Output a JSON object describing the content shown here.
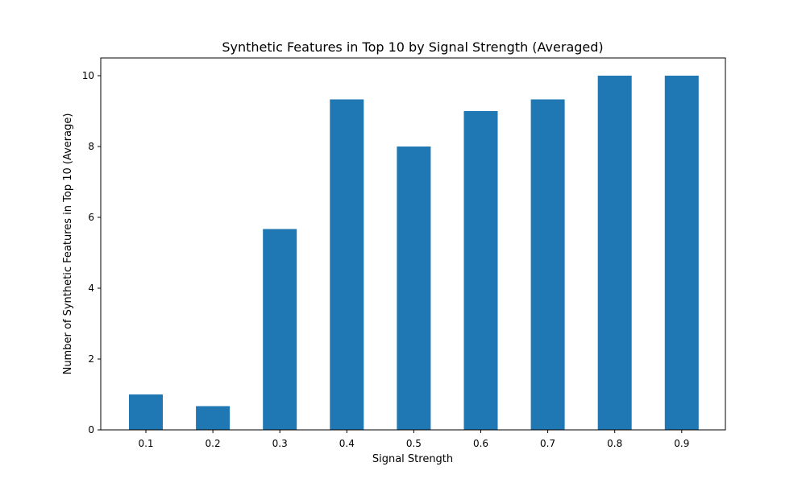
{
  "chart_data": {
    "type": "bar",
    "title": "Synthetic Features in Top 10 by Signal Strength (Averaged)",
    "xlabel": "Signal Strength",
    "ylabel": "Number of Synthetic Features in Top 10 (Average)",
    "categories": [
      "0.1",
      "0.2",
      "0.3",
      "0.4",
      "0.5",
      "0.6",
      "0.7",
      "0.8",
      "0.9"
    ],
    "values": [
      1.0,
      0.67,
      5.67,
      9.33,
      8.0,
      9.0,
      9.33,
      10.0,
      10.0
    ],
    "ylim": [
      0,
      10.5
    ],
    "yticks": [
      0,
      2,
      4,
      6,
      8,
      10
    ],
    "ytick_labels": [
      "0",
      "2",
      "4",
      "6",
      "8",
      "10"
    ],
    "bar_color": "#1f77b4",
    "grid": false,
    "legend": false
  }
}
